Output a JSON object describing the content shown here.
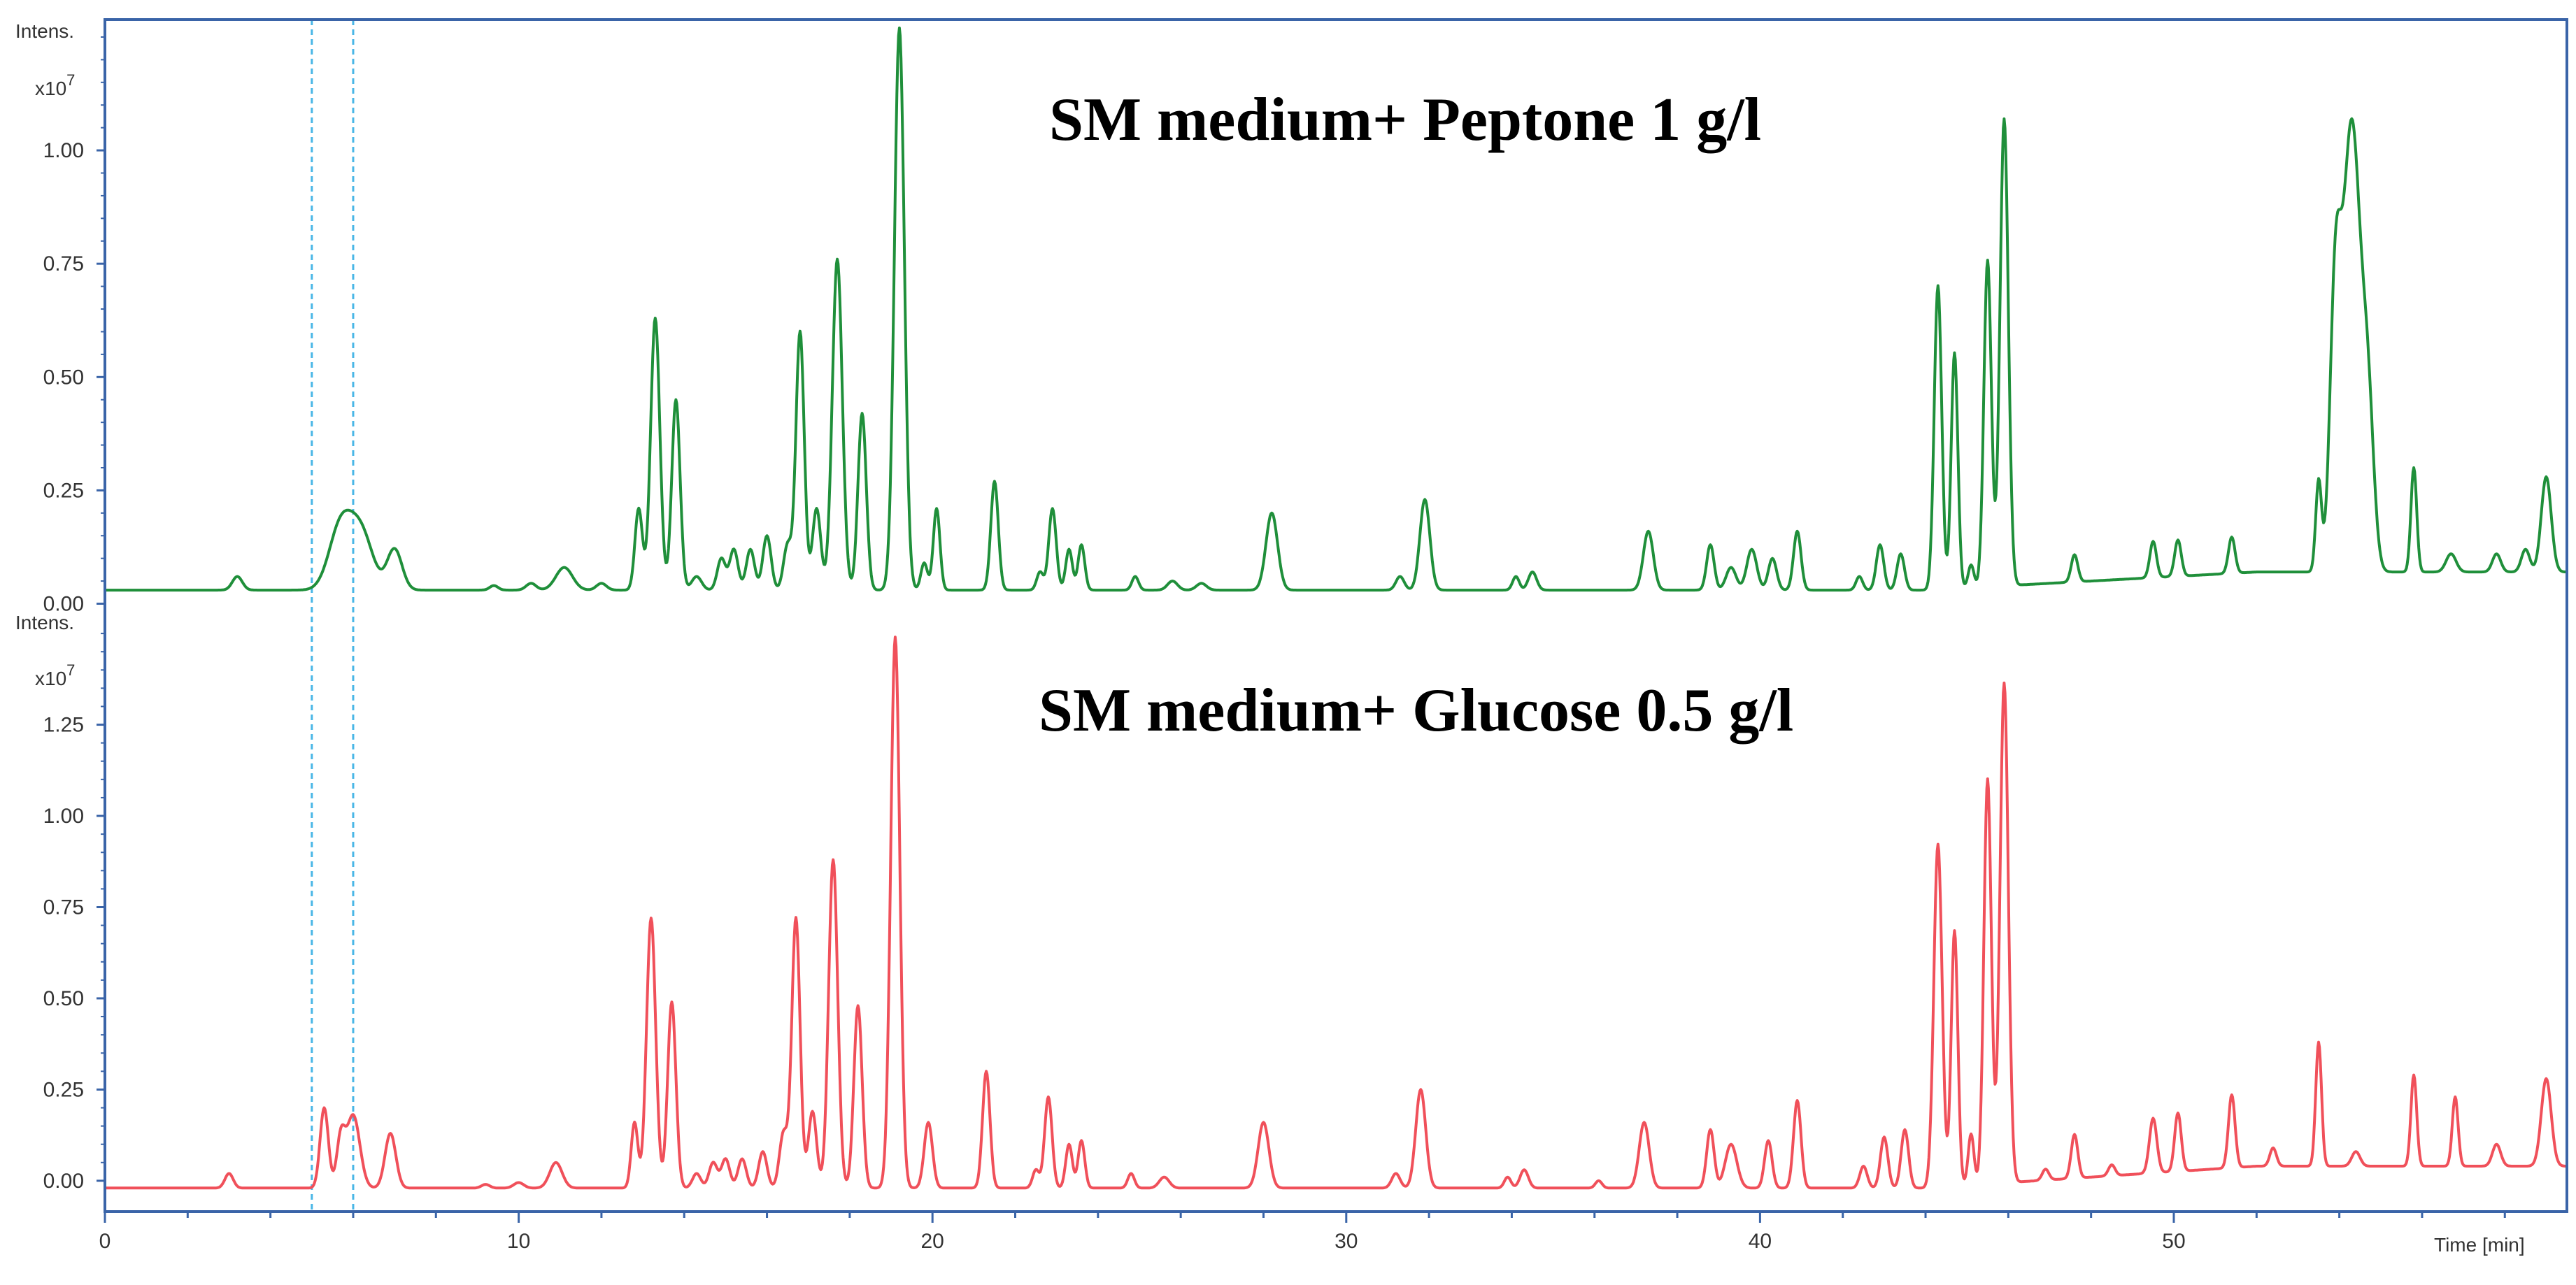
{
  "chart_data": {
    "type": "line",
    "x_axis": {
      "label": "Time [min]",
      "range": [
        0,
        59.5
      ],
      "ticks": [
        0,
        10,
        20,
        30,
        40,
        50
      ],
      "tick_labels": [
        "0",
        "10",
        "20",
        "30",
        "40",
        "50"
      ]
    },
    "colors": {
      "frame": "#3a64a8",
      "marker": "#49b6e6",
      "peptone": "#1f8f3a",
      "glucose": "#f0505a"
    },
    "markers_x": [
      5.0,
      6.0
    ],
    "panels": [
      {
        "title": "SM medium+  Peptone 1 g/l",
        "y_label_line1": "Intens.",
        "y_label_line2": "x10",
        "y_label_exp": "7",
        "y_range": [
          -0.01,
          1.27
        ],
        "y_ticks": [
          "0.00",
          "0.25",
          "0.50",
          "0.75",
          "1.00"
        ],
        "baseline": 0.03,
        "baseline_end": 0.07,
        "color": "#1f8f3a",
        "peaks": [
          [
            3.2,
            0.03,
            0.12
          ],
          [
            5.7,
            0.14,
            0.28
          ],
          [
            6.2,
            0.12,
            0.28
          ],
          [
            7.0,
            0.09,
            0.18
          ],
          [
            9.4,
            0.01,
            0.1
          ],
          [
            10.3,
            0.015,
            0.12
          ],
          [
            11.1,
            0.05,
            0.2
          ],
          [
            12.0,
            0.015,
            0.12
          ],
          [
            12.9,
            0.18,
            0.09
          ],
          [
            13.3,
            0.6,
            0.11
          ],
          [
            13.8,
            0.42,
            0.1
          ],
          [
            14.3,
            0.03,
            0.12
          ],
          [
            14.9,
            0.07,
            0.1
          ],
          [
            15.2,
            0.09,
            0.1
          ],
          [
            15.6,
            0.09,
            0.1
          ],
          [
            16.0,
            0.12,
            0.1
          ],
          [
            16.5,
            0.1,
            0.1
          ],
          [
            16.8,
            0.57,
            0.1
          ],
          [
            17.2,
            0.18,
            0.1
          ],
          [
            17.7,
            0.73,
            0.12
          ],
          [
            18.3,
            0.39,
            0.1
          ],
          [
            19.2,
            1.24,
            0.12
          ],
          [
            19.8,
            0.06,
            0.08
          ],
          [
            20.1,
            0.18,
            0.08
          ],
          [
            21.5,
            0.24,
            0.09
          ],
          [
            22.6,
            0.04,
            0.08
          ],
          [
            22.9,
            0.18,
            0.09
          ],
          [
            23.3,
            0.09,
            0.08
          ],
          [
            23.6,
            0.1,
            0.08
          ],
          [
            24.9,
            0.03,
            0.08
          ],
          [
            25.8,
            0.02,
            0.12
          ],
          [
            26.5,
            0.015,
            0.12
          ],
          [
            28.2,
            0.17,
            0.14
          ],
          [
            31.3,
            0.03,
            0.1
          ],
          [
            31.9,
            0.2,
            0.12
          ],
          [
            34.1,
            0.03,
            0.08
          ],
          [
            34.5,
            0.04,
            0.1
          ],
          [
            37.3,
            0.13,
            0.12
          ],
          [
            38.8,
            0.1,
            0.09
          ],
          [
            39.3,
            0.05,
            0.12
          ],
          [
            39.8,
            0.09,
            0.12
          ],
          [
            40.3,
            0.07,
            0.1
          ],
          [
            40.9,
            0.13,
            0.09
          ],
          [
            42.4,
            0.03,
            0.08
          ],
          [
            42.9,
            0.1,
            0.09
          ],
          [
            43.4,
            0.08,
            0.09
          ],
          [
            44.3,
            0.67,
            0.09
          ],
          [
            44.7,
            0.52,
            0.08
          ],
          [
            45.1,
            0.05,
            0.07
          ],
          [
            45.5,
            0.72,
            0.09
          ],
          [
            45.9,
            1.03,
            0.1
          ],
          [
            47.6,
            0.06,
            0.08
          ],
          [
            49.5,
            0.08,
            0.08
          ],
          [
            50.1,
            0.08,
            0.08
          ],
          [
            51.4,
            0.08,
            0.08
          ],
          [
            53.5,
            0.2,
            0.07
          ],
          [
            53.9,
            0.55,
            0.13
          ],
          [
            54.3,
            0.99,
            0.22
          ],
          [
            54.7,
            0.3,
            0.14
          ],
          [
            55.8,
            0.23,
            0.07
          ],
          [
            56.7,
            0.04,
            0.12
          ],
          [
            57.8,
            0.04,
            0.1
          ],
          [
            58.5,
            0.05,
            0.1
          ],
          [
            59.0,
            0.21,
            0.12
          ]
        ]
      },
      {
        "title": "SM medium+  Glucose 0.5 g/l",
        "y_label_line1": "Intens.",
        "y_label_line2": "x10",
        "y_label_exp": "7",
        "y_range": [
          -0.05,
          1.55
        ],
        "y_ticks": [
          "0.00",
          "0.25",
          "0.50",
          "0.75",
          "1.00",
          "1.25"
        ],
        "baseline": -0.02,
        "baseline_end": 0.04,
        "color": "#f0505a",
        "peaks": [
          [
            3.0,
            0.04,
            0.1
          ],
          [
            5.3,
            0.22,
            0.1
          ],
          [
            5.7,
            0.13,
            0.1
          ],
          [
            6.0,
            0.2,
            0.16
          ],
          [
            6.9,
            0.15,
            0.13
          ],
          [
            9.2,
            0.01,
            0.1
          ],
          [
            10.0,
            0.015,
            0.12
          ],
          [
            10.9,
            0.07,
            0.15
          ],
          [
            12.8,
            0.18,
            0.08
          ],
          [
            13.2,
            0.74,
            0.11
          ],
          [
            13.7,
            0.51,
            0.1
          ],
          [
            14.3,
            0.04,
            0.1
          ],
          [
            14.7,
            0.07,
            0.1
          ],
          [
            15.0,
            0.08,
            0.1
          ],
          [
            15.4,
            0.08,
            0.1
          ],
          [
            15.9,
            0.1,
            0.1
          ],
          [
            16.4,
            0.15,
            0.1
          ],
          [
            16.7,
            0.74,
            0.1
          ],
          [
            17.1,
            0.21,
            0.1
          ],
          [
            17.6,
            0.9,
            0.11
          ],
          [
            18.2,
            0.5,
            0.1
          ],
          [
            19.1,
            1.51,
            0.11
          ],
          [
            19.9,
            0.18,
            0.1
          ],
          [
            21.3,
            0.32,
            0.09
          ],
          [
            22.5,
            0.05,
            0.08
          ],
          [
            22.8,
            0.25,
            0.09
          ],
          [
            23.3,
            0.12,
            0.08
          ],
          [
            23.6,
            0.13,
            0.08
          ],
          [
            24.8,
            0.04,
            0.08
          ],
          [
            25.6,
            0.03,
            0.12
          ],
          [
            28.0,
            0.18,
            0.13
          ],
          [
            31.2,
            0.04,
            0.1
          ],
          [
            31.8,
            0.27,
            0.12
          ],
          [
            33.9,
            0.03,
            0.08
          ],
          [
            34.3,
            0.05,
            0.1
          ],
          [
            36.1,
            0.02,
            0.08
          ],
          [
            37.2,
            0.18,
            0.12
          ],
          [
            38.8,
            0.16,
            0.09
          ],
          [
            39.3,
            0.12,
            0.14
          ],
          [
            40.2,
            0.13,
            0.09
          ],
          [
            40.9,
            0.24,
            0.09
          ],
          [
            42.5,
            0.06,
            0.09
          ],
          [
            43.0,
            0.14,
            0.09
          ],
          [
            43.5,
            0.16,
            0.09
          ],
          [
            44.3,
            0.94,
            0.1
          ],
          [
            44.7,
            0.7,
            0.08
          ],
          [
            45.1,
            0.14,
            0.07
          ],
          [
            45.5,
            1.11,
            0.09
          ],
          [
            45.9,
            1.37,
            0.1
          ],
          [
            46.9,
            0.03,
            0.08
          ],
          [
            47.6,
            0.12,
            0.08
          ],
          [
            48.5,
            0.03,
            0.08
          ],
          [
            49.5,
            0.15,
            0.09
          ],
          [
            50.1,
            0.16,
            0.08
          ],
          [
            51.4,
            0.2,
            0.08
          ],
          [
            52.4,
            0.05,
            0.08
          ],
          [
            53.5,
            0.34,
            0.07
          ],
          [
            54.4,
            0.04,
            0.1
          ],
          [
            55.8,
            0.25,
            0.07
          ],
          [
            56.8,
            0.19,
            0.07
          ],
          [
            57.8,
            0.06,
            0.1
          ],
          [
            59.0,
            0.24,
            0.12
          ]
        ]
      }
    ]
  }
}
